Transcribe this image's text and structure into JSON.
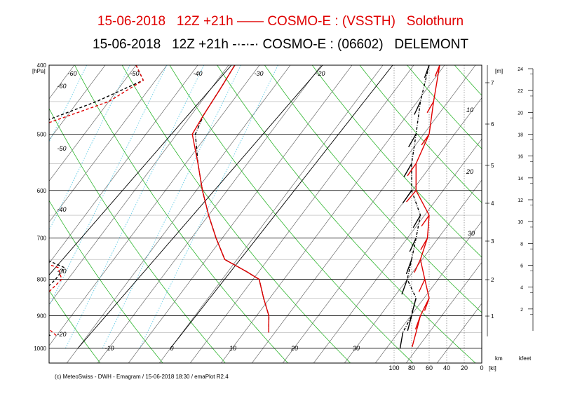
{
  "title": {
    "line1": {
      "date": "15-06-2018",
      "run": "12Z +21h",
      "legend": "——",
      "model": "COSMO-E : (VSSTH)",
      "station": "Solothurn",
      "color": "#e00000"
    },
    "line2": {
      "date": "15-06-2018",
      "run": "12Z +21h",
      "legend": "-·-·-·",
      "model": "COSMO-E : (06602)",
      "station": "DELEMONT",
      "color": "#000000"
    }
  },
  "footer": "(c) MeteoSwiss - DWH - Emagram / 15-06-2018  18:30 / emaPlot R2.4",
  "chart_data": {
    "type": "line",
    "diagram": "emagram (skew-T log-p)",
    "ylabel": "[hPa]",
    "pressure_ticks": [
      400,
      500,
      600,
      700,
      800,
      900,
      1000
    ],
    "isotherm_labels": [
      -60,
      -50,
      -40,
      -30,
      -20,
      -10,
      0,
      10,
      20,
      30
    ],
    "dry_adiabat_labels": [
      -60,
      -50,
      -40,
      -30,
      -20
    ],
    "height_m_label": "[m]",
    "height_m_ticks": [
      1,
      2,
      3,
      4,
      5,
      6,
      7
    ],
    "height_m_units_label": "km",
    "height_kft_label": "kfeet",
    "height_kft_ticks": [
      2,
      4,
      6,
      8,
      10,
      12,
      14,
      16,
      18,
      20,
      22,
      24
    ],
    "wind_axis_label": "[kt]",
    "wind_ticks": [
      100,
      80,
      60,
      40,
      20,
      0
    ],
    "wind_inner_labels": [
      10,
      20,
      30
    ],
    "colors": {
      "solothurn": "#e00000",
      "delemont": "#000000",
      "isotherm": "#555555",
      "dry_adiabat": "#2db52d",
      "mixing_ratio": "#6ccfe8"
    },
    "series": [
      {
        "name": "Solothurn",
        "temperature": [
          [
            400,
            -24
          ],
          [
            430,
            -23.5
          ],
          [
            470,
            -23
          ],
          [
            500,
            -22.5
          ],
          [
            550,
            -18
          ],
          [
            600,
            -14
          ],
          [
            650,
            -10
          ],
          [
            700,
            -6
          ],
          [
            750,
            -2
          ],
          [
            780,
            3
          ],
          [
            800,
            6
          ],
          [
            850,
            9
          ],
          [
            900,
            12
          ],
          [
            950,
            14
          ]
        ],
        "dewpoint": [
          [
            400,
            -40
          ],
          [
            420,
            -37
          ],
          [
            450,
            -40
          ],
          [
            500,
            -51
          ],
          [
            530,
            -55
          ],
          [
            570,
            -54
          ],
          [
            600,
            -56
          ],
          [
            640,
            -67
          ],
          [
            680,
            -53
          ],
          [
            720,
            -42
          ],
          [
            750,
            -33
          ],
          [
            770,
            -28
          ],
          [
            800,
            -26
          ],
          [
            860,
            -27
          ],
          [
            900,
            -25
          ],
          [
            940,
            -22
          ],
          [
            960,
            -20
          ]
        ],
        "wind_kt": [
          [
            400,
            48,
            22
          ],
          [
            450,
            55,
            30
          ],
          [
            500,
            60,
            35
          ],
          [
            550,
            75,
            35
          ],
          [
            600,
            75,
            40
          ],
          [
            650,
            60,
            35
          ],
          [
            700,
            62,
            30
          ],
          [
            750,
            70,
            25
          ],
          [
            800,
            65,
            25
          ],
          [
            850,
            60,
            20
          ],
          [
            900,
            70,
            20
          ],
          [
            950,
            75,
            15
          ]
        ]
      },
      {
        "name": "DELEMONT",
        "temperature": [
          [
            400,
            -24
          ],
          [
            430,
            -23.5
          ],
          [
            470,
            -23
          ],
          [
            500,
            -22
          ],
          [
            550,
            -18
          ],
          [
            600,
            -14
          ],
          [
            650,
            -10
          ],
          [
            700,
            -6
          ],
          [
            750,
            -2
          ],
          [
            780,
            3
          ],
          [
            800,
            6
          ],
          [
            850,
            9
          ],
          [
            900,
            12
          ],
          [
            950,
            14
          ]
        ],
        "dewpoint": [
          [
            400,
            -40
          ],
          [
            420,
            -37
          ],
          [
            450,
            -42
          ],
          [
            500,
            -52
          ],
          [
            530,
            -56
          ],
          [
            570,
            -53
          ],
          [
            600,
            -55
          ],
          [
            640,
            -52
          ],
          [
            680,
            -46
          ],
          [
            720,
            -38
          ],
          [
            750,
            -31
          ],
          [
            770,
            -27
          ],
          [
            800,
            -27
          ],
          [
            860,
            -28
          ],
          [
            900,
            -26
          ],
          [
            940,
            -23
          ],
          [
            960,
            -21
          ]
        ],
        "wind_kt": [
          [
            400,
            60,
            20
          ],
          [
            450,
            70,
            25
          ],
          [
            500,
            75,
            30
          ],
          [
            550,
            80,
            30
          ],
          [
            600,
            80,
            35
          ],
          [
            650,
            70,
            30
          ],
          [
            700,
            75,
            25
          ],
          [
            750,
            80,
            20
          ],
          [
            800,
            85,
            20
          ],
          [
            850,
            75,
            15
          ],
          [
            900,
            80,
            15
          ],
          [
            950,
            90,
            10
          ]
        ]
      }
    ]
  }
}
